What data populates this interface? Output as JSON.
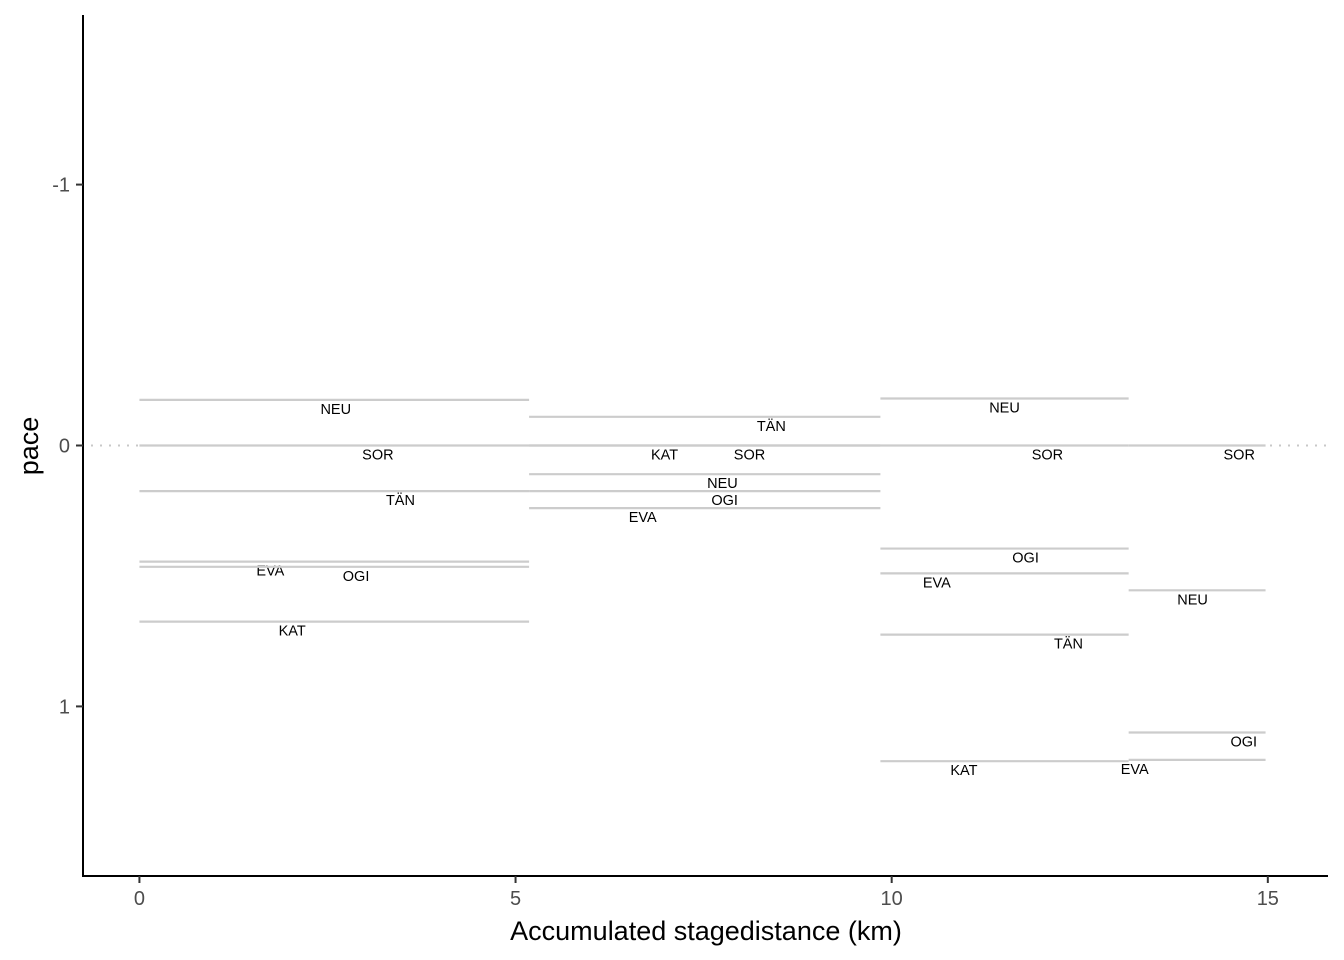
{
  "chart_data": {
    "type": "line",
    "title": "",
    "xlabel": "Accumulated stagedistance (km)",
    "ylabel": "pace",
    "xlim": [
      -0.75,
      15.8
    ],
    "ylim": [
      -1.65,
      1.65
    ],
    "y_reversed": true,
    "grid": false,
    "x_ticks": [
      {
        "value": 0,
        "label": "0"
      },
      {
        "value": 5,
        "label": "5"
      },
      {
        "value": 10,
        "label": "10"
      },
      {
        "value": 15,
        "label": "15"
      }
    ],
    "y_ticks": [
      {
        "value": -1,
        "label": "-1"
      },
      {
        "value": 0,
        "label": "0"
      },
      {
        "value": 1,
        "label": "1"
      }
    ],
    "reference_line": {
      "y": 0,
      "style": "dotted"
    },
    "segment_color": "#cccccc",
    "segments": [
      {
        "label": "NEU",
        "x0": 0,
        "x1": 5.18,
        "y": -0.175,
        "label_x": 2.61
      },
      {
        "label": "SOR",
        "x0": 0,
        "x1": 5.18,
        "y": 0.0,
        "label_x": 3.17
      },
      {
        "label": "TÄN",
        "x0": 0,
        "x1": 5.18,
        "y": 0.175,
        "label_x": 3.47
      },
      {
        "label": "EVA",
        "x0": 0,
        "x1": 5.18,
        "y": 0.445,
        "label_x": 1.74
      },
      {
        "label": "OGI",
        "x0": 0,
        "x1": 5.18,
        "y": 0.465,
        "label_x": 2.88
      },
      {
        "label": "KAT",
        "x0": 0,
        "x1": 5.18,
        "y": 0.675,
        "label_x": 2.03
      },
      {
        "label": "TÄN",
        "x0": 5.18,
        "x1": 9.85,
        "y": -0.11,
        "label_x": 8.4
      },
      {
        "label": "KAT",
        "x0": 5.18,
        "x1": 9.85,
        "y": 0.0,
        "label_x": 6.98
      },
      {
        "label": "SOR",
        "x0": 5.18,
        "x1": 9.85,
        "y": 0.0,
        "label_x": 8.11
      },
      {
        "label": "NEU",
        "x0": 5.18,
        "x1": 9.85,
        "y": 0.11,
        "label_x": 7.75
      },
      {
        "label": "OGI",
        "x0": 5.18,
        "x1": 9.85,
        "y": 0.175,
        "label_x": 7.78
      },
      {
        "label": "EVA",
        "x0": 5.18,
        "x1": 9.85,
        "y": 0.24,
        "label_x": 6.69
      },
      {
        "label": "NEU",
        "x0": 9.85,
        "x1": 13.15,
        "y": -0.18,
        "label_x": 11.5
      },
      {
        "label": "SOR",
        "x0": 9.85,
        "x1": 13.15,
        "y": 0.0,
        "label_x": 12.07
      },
      {
        "label": "OGI",
        "x0": 9.85,
        "x1": 13.15,
        "y": 0.395,
        "label_x": 11.78
      },
      {
        "label": "EVA",
        "x0": 9.85,
        "x1": 13.15,
        "y": 0.49,
        "label_x": 10.6
      },
      {
        "label": "TÄN",
        "x0": 9.85,
        "x1": 13.15,
        "y": 0.725,
        "label_x": 12.35
      },
      {
        "label": "KAT",
        "x0": 9.85,
        "x1": 13.15,
        "y": 1.21,
        "label_x": 10.96
      },
      {
        "label": "SOR",
        "x0": 13.15,
        "x1": 14.97,
        "y": 0.0,
        "label_x": 14.62
      },
      {
        "label": "NEU",
        "x0": 13.15,
        "x1": 14.97,
        "y": 0.555,
        "label_x": 14.0
      },
      {
        "label": "OGI",
        "x0": 13.15,
        "x1": 14.97,
        "y": 1.1,
        "label_x": 14.68
      },
      {
        "label": "EVA",
        "x0": 13.15,
        "x1": 14.97,
        "y": 1.205,
        "label_x": 13.23
      }
    ]
  }
}
